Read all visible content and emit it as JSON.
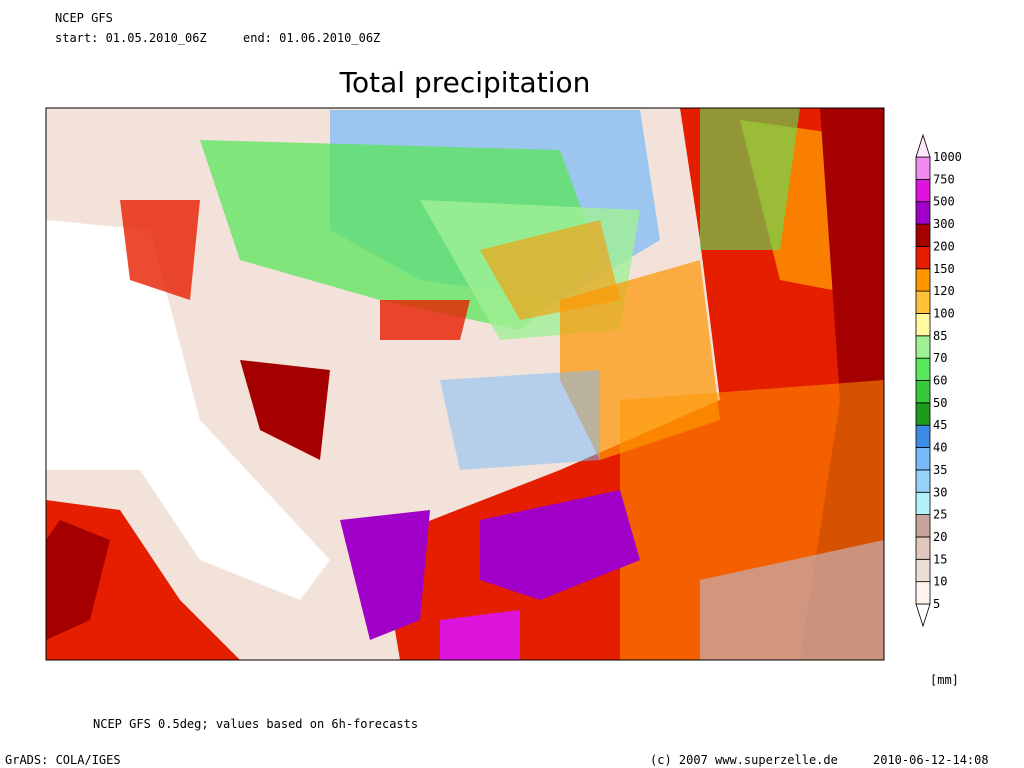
{
  "header": {
    "source": "NCEP GFS",
    "start": "start: 01.05.2010_06Z",
    "end": "end: 01.06.2010_06Z"
  },
  "title": "Total precipitation",
  "colorbar": {
    "levels": [
      5,
      10,
      15,
      20,
      25,
      30,
      35,
      40,
      45,
      50,
      60,
      70,
      85,
      100,
      120,
      150,
      200,
      300,
      500,
      750,
      1000
    ],
    "colors": [
      "#ffffff",
      "#fff3ee",
      "#eedfd6",
      "#e0c8bc",
      "#c8a49c",
      "#b4f0fa",
      "#96d2fa",
      "#78b9fa",
      "#3c8ce6",
      "#1e9b1e",
      "#37c83c",
      "#5ae65a",
      "#a0f096",
      "#fffaa0",
      "#ffc03c",
      "#ff9600",
      "#e61e00",
      "#a50000",
      "#a000c8",
      "#dc14dc",
      "#f08cf0",
      "#ffe6ff"
    ],
    "unit": "[mm]"
  },
  "footer": {
    "note": "NCEP GFS 0.5deg; values based on 6h-forecasts",
    "software": "GrADS: COLA/IGES",
    "copyright": "(c) 2007 www.superzelle.de",
    "timestamp": "2010-06-12-14:08"
  }
}
